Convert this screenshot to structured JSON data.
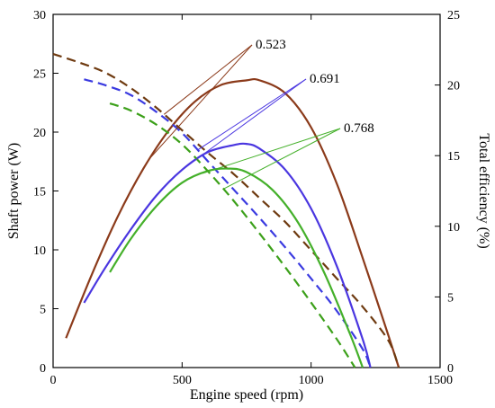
{
  "chart_data": {
    "type": "line",
    "title": "",
    "xlabel": "Engine speed (rpm)",
    "ylabel_left": "Shaft power (W)",
    "ylabel_right": "Total efficiency (%)",
    "xlim": [
      0,
      1500
    ],
    "ylim_left": [
      0,
      30
    ],
    "ylim_right": [
      0,
      25
    ],
    "x_ticks": [
      0,
      500,
      1000,
      1500
    ],
    "y_left_ticks": [
      0,
      5,
      10,
      15,
      20,
      25,
      30
    ],
    "y_right_ticks": [
      0,
      5,
      10,
      15,
      20,
      25
    ],
    "grid": false,
    "legend": "none",
    "annotations": [
      {
        "text": "0.523",
        "color": "#8B3A1A"
      },
      {
        "text": "0.691",
        "color": "#4A36E0"
      },
      {
        "text": "0.768",
        "color": "#44B02A"
      }
    ],
    "series": [
      {
        "label": "0.523",
        "axis": "left",
        "style": "solid",
        "color": "#8B3A1A",
        "x": [
          50,
          150,
          250,
          350,
          450,
          550,
          650,
          750,
          800,
          900,
          1000,
          1100,
          1200,
          1300,
          1340
        ],
        "y": [
          2.5,
          7.9,
          12.8,
          16.9,
          20.2,
          22.6,
          24.0,
          24.4,
          24.4,
          23.3,
          20.4,
          15.6,
          9.3,
          2.7,
          0
        ]
      },
      {
        "label": "0.523",
        "axis": "right",
        "style": "dashed",
        "color": "#6E3A10",
        "x": [
          0,
          100,
          200,
          300,
          400,
          500,
          600,
          700,
          800,
          900,
          1000,
          1100,
          1200,
          1300,
          1340
        ],
        "y": [
          22.2,
          21.6,
          20.9,
          19.8,
          18.4,
          16.8,
          15.2,
          13.7,
          12.0,
          10.3,
          8.3,
          6.3,
          4.3,
          1.9,
          0
        ]
      },
      {
        "label": "0.691",
        "axis": "left",
        "style": "solid",
        "color": "#4A36E0",
        "x": [
          120,
          200,
          300,
          400,
          500,
          600,
          700,
          750,
          800,
          900,
          1000,
          1100,
          1200,
          1230
        ],
        "y": [
          5.5,
          8.4,
          11.7,
          14.6,
          16.8,
          18.3,
          18.9,
          19.0,
          18.6,
          16.8,
          13.5,
          8.6,
          2.4,
          0
        ]
      },
      {
        "label": "0.691",
        "axis": "right",
        "style": "dashed",
        "color": "#3A3AE0",
        "x": [
          120,
          200,
          300,
          400,
          500,
          600,
          700,
          800,
          900,
          1000,
          1100,
          1200,
          1230
        ],
        "y": [
          20.4,
          20.0,
          19.3,
          18.1,
          16.6,
          14.6,
          12.6,
          10.6,
          8.5,
          6.3,
          4.0,
          1.3,
          0
        ]
      },
      {
        "label": "0.768",
        "axis": "left",
        "style": "solid",
        "color": "#44B02A",
        "x": [
          220,
          300,
          400,
          500,
          600,
          680,
          750,
          850,
          950,
          1050,
          1150,
          1200
        ],
        "y": [
          8.1,
          10.9,
          13.7,
          15.7,
          16.7,
          16.9,
          16.6,
          15.1,
          12.3,
          8.1,
          2.9,
          0
        ]
      },
      {
        "label": "0.768",
        "axis": "right",
        "style": "dashed",
        "color": "#3CA01A",
        "x": [
          220,
          300,
          400,
          500,
          600,
          700,
          800,
          900,
          1000,
          1100,
          1170
        ],
        "y": [
          18.7,
          18.2,
          17.2,
          15.8,
          13.9,
          11.8,
          9.5,
          7.1,
          4.6,
          2.0,
          0
        ]
      }
    ]
  }
}
